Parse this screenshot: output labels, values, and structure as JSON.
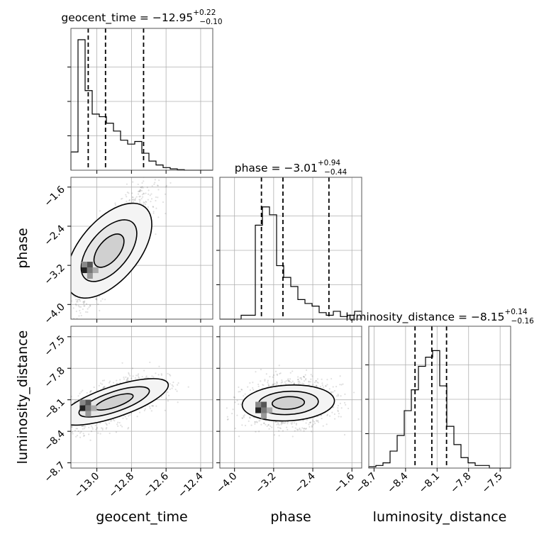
{
  "chart_data": {
    "type": "corner",
    "parameters": [
      "geocent_time",
      "phase",
      "luminosity_distance"
    ],
    "titles": [
      {
        "param": "geocent_time",
        "prefix": "geocent_time = ",
        "median": "−12.95",
        "plus": "+0.22",
        "minus": "−0.10"
      },
      {
        "param": "phase",
        "prefix": "phase = ",
        "median": "−3.01",
        "plus": "+0.94",
        "minus": "−0.44"
      },
      {
        "param": "luminosity_distance",
        "prefix": "luminosity_distance = ",
        "median": "−8.15",
        "plus": "+0.14",
        "minus": "−0.16"
      }
    ],
    "axis_labels": {
      "bottom": [
        "geocent_time",
        "phase",
        "luminosity_distance"
      ],
      "left": [
        "phase",
        "luminosity_distance"
      ]
    },
    "ranges": {
      "geocent_time": [
        -13.15,
        -12.33
      ],
      "phase": [
        -4.3,
        -1.4
      ],
      "luminosity_distance": [
        -8.75,
        -7.4
      ]
    },
    "ticks": {
      "geocent_time": [
        -13.0,
        -12.8,
        -12.6,
        -12.4
      ],
      "phase": [
        -4.0,
        -3.2,
        -2.4,
        -1.6
      ],
      "luminosity_distance": [
        -8.7,
        -8.4,
        -8.1,
        -7.8,
        -7.5
      ]
    },
    "tick_labels": {
      "geocent_time": [
        "−13.0",
        "−12.8",
        "−12.6",
        "−12.4"
      ],
      "phase": [
        "−4.0",
        "−3.2",
        "−2.4",
        "−1.6"
      ],
      "luminosity_distance": [
        "−8.7",
        "−8.4",
        "−8.1",
        "−7.8",
        "−7.5"
      ]
    },
    "quantiles": {
      "geocent_time": [
        -13.05,
        -12.95,
        -12.73
      ],
      "phase": [
        -3.45,
        -3.01,
        -2.07
      ],
      "luminosity_distance": [
        -8.31,
        -8.15,
        -8.01
      ]
    },
    "histograms": {
      "geocent_time": {
        "range": [
          -13.15,
          -12.33
        ],
        "counts": [
          0.14,
          1.0,
          0.61,
          0.43,
          0.41,
          0.36,
          0.3,
          0.23,
          0.2,
          0.22,
          0.13,
          0.07,
          0.04,
          0.02,
          0.01,
          0.004,
          0.0,
          0.0,
          0.0,
          0.0
        ]
      },
      "phase": {
        "range": [
          -4.3,
          -1.4
        ],
        "counts": [
          0.0,
          0.0,
          0.0,
          0.03,
          0.03,
          0.72,
          0.86,
          0.8,
          0.41,
          0.32,
          0.25,
          0.15,
          0.12,
          0.1,
          0.05,
          0.03,
          0.06,
          0.02,
          0.03,
          0.06
        ]
      },
      "luminosity_distance": {
        "range": [
          -8.75,
          -7.4
        ],
        "counts": [
          0.01,
          0.02,
          0.04,
          0.13,
          0.25,
          0.44,
          0.6,
          0.78,
          0.85,
          0.9,
          0.63,
          0.32,
          0.18,
          0.08,
          0.04,
          0.02,
          0.02,
          0.0,
          0.0,
          0.0
        ]
      }
    },
    "joint": [
      {
        "x": "geocent_time",
        "y": "phase",
        "mean": [
          -12.93,
          -2.9
        ],
        "sd": [
          0.12,
          0.6
        ],
        "corr": 0.85,
        "peak": [
          -13.04,
          -3.3
        ]
      },
      {
        "x": "geocent_time",
        "y": "luminosity_distance",
        "mean": [
          -12.9,
          -8.12
        ],
        "sd": [
          0.13,
          0.12
        ],
        "corr": 0.6,
        "peak": [
          -13.05,
          -8.18
        ]
      },
      {
        "x": "phase",
        "y": "luminosity_distance",
        "mean": [
          -2.9,
          -8.13
        ],
        "sd": [
          0.45,
          0.11
        ],
        "corr": 0.1,
        "peak": [
          -3.4,
          -8.2
        ]
      }
    ],
    "grid": true,
    "marginal_style": "step"
  }
}
